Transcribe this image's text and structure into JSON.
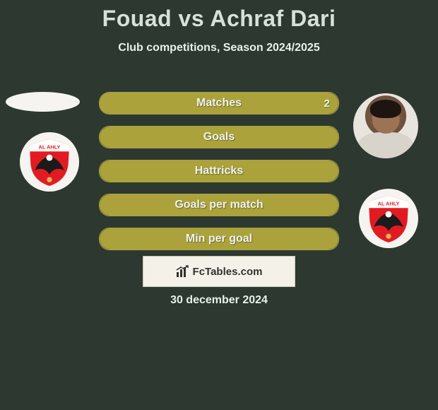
{
  "title": "Fouad vs Achraf Dari",
  "subtitle": "Club competitions, Season 2024/2025",
  "stats": [
    {
      "label": "Matches",
      "left_pct": 0,
      "right_pct": 100,
      "right_val": "2"
    },
    {
      "label": "Goals",
      "left_pct": 50,
      "right_pct": 50
    },
    {
      "label": "Hattricks",
      "left_pct": 50,
      "right_pct": 50
    },
    {
      "label": "Goals per match",
      "left_pct": 50,
      "right_pct": 50
    },
    {
      "label": "Min per goal",
      "left_pct": 50,
      "right_pct": 50
    }
  ],
  "fctables_label": "FcTables.com",
  "date": "30 december 2024",
  "crest": {
    "bg": "#e21b22",
    "top_band": "#ffffff",
    "text": "AL AHLY",
    "text_color": "#e21b22",
    "eagle_body": "#1b1b1b",
    "eagle_head": "#ffffff"
  },
  "colors": {
    "page_bg": "#2c3830",
    "bar_fill": "#aba23c",
    "text_light": "#eef2ee"
  }
}
